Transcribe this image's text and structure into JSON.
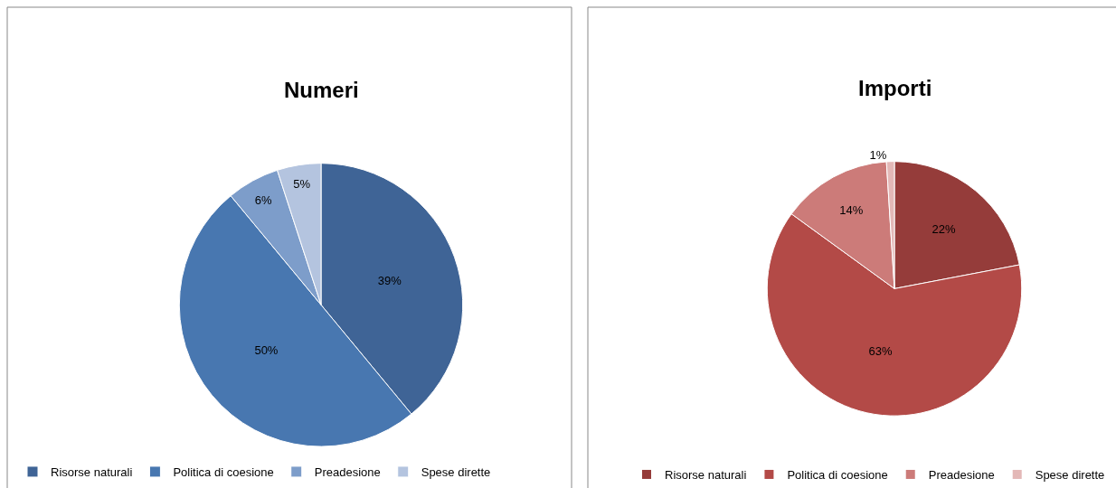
{
  "chart_data": [
    {
      "type": "pie",
      "title": "Numeri",
      "categories": [
        "Risorse naturali",
        "Politica di coesione",
        "Preadesione",
        "Spese dirette"
      ],
      "values": [
        39,
        50,
        6,
        5
      ],
      "colors": [
        "#3f6496",
        "#4877b0",
        "#7d9dca",
        "#b4c4df"
      ],
      "value_labels": [
        "39%",
        "50%",
        "6%",
        "5%"
      ],
      "legend": "bottom"
    },
    {
      "type": "pie",
      "title": "Importi",
      "categories": [
        "Risorse naturali",
        "Politica di coesione",
        "Preadesione",
        "Spese dirette"
      ],
      "values": [
        22,
        63,
        14,
        1
      ],
      "colors": [
        "#953c3a",
        "#b34a47",
        "#cc7b79",
        "#e3b8b7"
      ],
      "value_labels": [
        "22%",
        "63%",
        "14%",
        "1%"
      ],
      "legend": "bottom"
    }
  ]
}
